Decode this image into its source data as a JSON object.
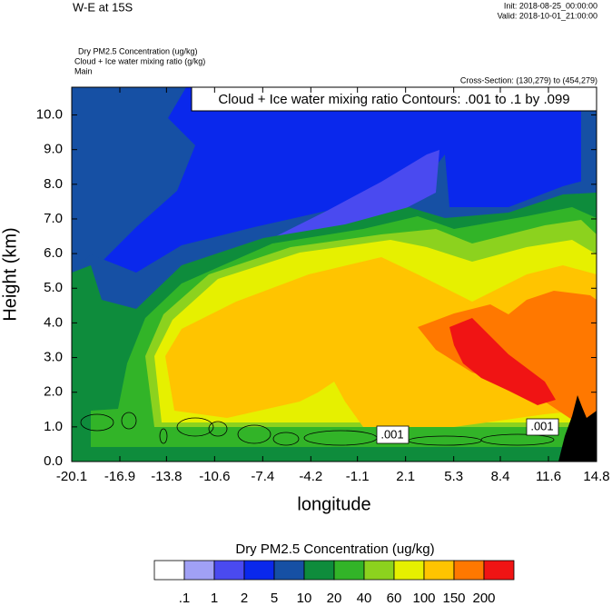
{
  "chart_data": {
    "type": "contour",
    "title": "W-E at 15S",
    "init": "Init: 2018-08-25_00:00:00",
    "valid": "Valid: 2018-10-01_21:00:00",
    "fields": [
      "Dry PM2.5 Concentration   (ug/kg)",
      "Cloud + Ice water mixing ratio   (g/kg)",
      "Main"
    ],
    "subtitle": "Cross-Section: (130,279) to (454,279)",
    "annotation": "Cloud + Ice water mixing ratio Contours: .001 to .1 by .099",
    "contour_labels": [
      ".001",
      ".001"
    ],
    "x_label": "longitude",
    "y_label": "Height (km)",
    "xlim": [
      -20.1,
      14.8
    ],
    "xticks": [
      -20.1,
      -16.9,
      -13.8,
      -10.6,
      -7.4,
      -4.2,
      -1.1,
      2.1,
      5.3,
      8.4,
      11.6,
      14.8
    ],
    "ylim": [
      0,
      10.8
    ],
    "yticks": [
      {
        "value": 0,
        "label": "0.0"
      },
      {
        "value": 1,
        "label": "1.0"
      },
      {
        "value": 2,
        "label": "2.0"
      },
      {
        "value": 3,
        "label": "3.0"
      },
      {
        "value": 4,
        "label": "4.0"
      },
      {
        "value": 5,
        "label": "5.0"
      },
      {
        "value": 6,
        "label": "6.0"
      },
      {
        "value": 7,
        "label": "7.0"
      },
      {
        "value": 8,
        "label": "8.0"
      },
      {
        "value": 9,
        "label": "9.0"
      },
      {
        "value": 10,
        "label": "10.0"
      }
    ],
    "colorbar": {
      "title": "Dry PM2.5 Concentration  (ug/kg)",
      "levels": [
        {
          "value": 0.1,
          "label": ".1"
        },
        1,
        2,
        5,
        10,
        20,
        40,
        60,
        100,
        150,
        200
      ],
      "colors": [
        "#ffffff",
        "#a0a0f5",
        "#4a4af0",
        "#0a28ec",
        "#1650a4",
        "#0e8c3c",
        "#32b428",
        "#8cd21e",
        "#e6f000",
        "#ffc400",
        "#ff7800",
        "#f01414"
      ]
    }
  }
}
